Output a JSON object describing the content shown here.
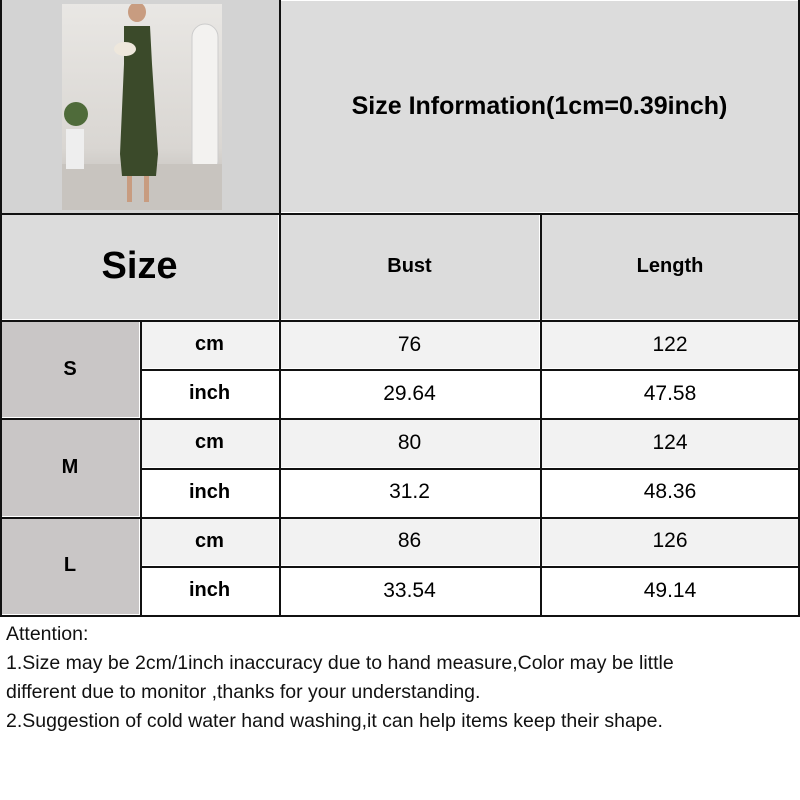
{
  "title": "Size Information(1cm=0.39inch)",
  "header": {
    "size": "Size",
    "columns": [
      "Bust",
      "Length"
    ]
  },
  "rows": [
    {
      "size": "S",
      "cm": {
        "unit": "cm",
        "bust": "76",
        "length": "122"
      },
      "inch": {
        "unit": "inch",
        "bust": "29.64",
        "length": "47.58"
      }
    },
    {
      "size": "M",
      "cm": {
        "unit": "cm",
        "bust": "80",
        "length": "124"
      },
      "inch": {
        "unit": "inch",
        "bust": "31.2",
        "length": "48.36"
      }
    },
    {
      "size": "L",
      "cm": {
        "unit": "cm",
        "bust": "86",
        "length": "126"
      },
      "inch": {
        "unit": "inch",
        "bust": "33.54",
        "length": "49.14"
      }
    }
  ],
  "attention": {
    "heading": "Attention:",
    "lines": [
      "1.Size may be 2cm/1inch inaccuracy due to hand measure,Color may be little",
      "different due to monitor ,thanks for your understanding.",
      "2.Suggestion of cold water hand washing,it can help items keep their shape."
    ]
  },
  "colors": {
    "header_bg": "#dcdcdc",
    "size_bg": "#c9c6c6",
    "cm_row_bg": "#f2f2f2",
    "inch_row_bg": "#ffffff",
    "dress": "#3b4a2a"
  }
}
